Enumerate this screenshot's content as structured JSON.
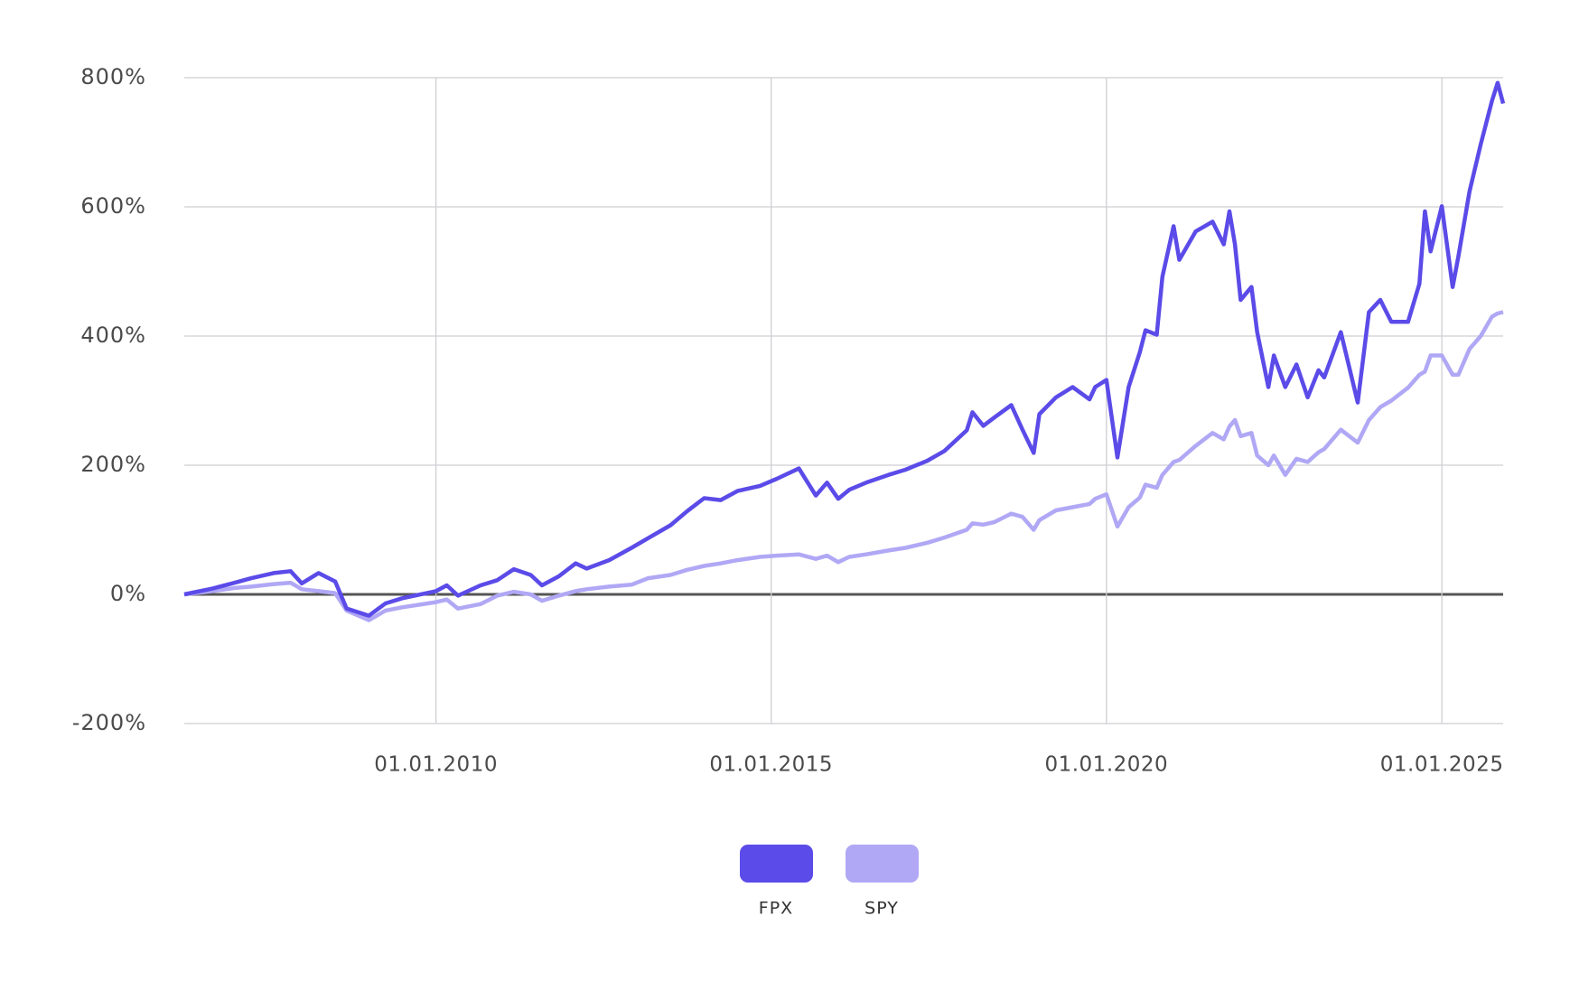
{
  "chart_data": {
    "type": "line",
    "x": [
      "01.04.2006",
      "01.09.2006",
      "01.01.2007",
      "01.04.2007",
      "01.08.2007",
      "01.11.2007",
      "01.01.2008",
      "01.04.2008",
      "01.07.2008",
      "01.09.2008",
      "01.01.2009",
      "01.04.2009",
      "01.07.2009",
      "01.01.2010",
      "01.03.2010",
      "01.05.2010",
      "01.09.2010",
      "01.12.2010",
      "01.03.2011",
      "01.06.2011",
      "01.08.2011",
      "01.11.2011",
      "01.02.2012",
      "01.04.2012",
      "01.08.2012",
      "01.12.2012",
      "01.03.2013",
      "01.07.2013",
      "01.10.2013",
      "01.01.2014",
      "01.04.2014",
      "01.07.2014",
      "01.11.2014",
      "01.02.2015",
      "01.06.2015",
      "01.09.2015",
      "01.11.2015",
      "01.01.2016",
      "01.03.2016",
      "01.06.2016",
      "01.10.2016",
      "01.01.2017",
      "01.05.2017",
      "01.08.2017",
      "01.12.2017",
      "01.01.2018",
      "01.03.2018",
      "01.05.2018",
      "01.08.2018",
      "01.10.2018",
      "01.12.2018",
      "01.01.2019",
      "01.04.2019",
      "01.07.2019",
      "01.10.2019",
      "01.11.2019",
      "01.01.2020",
      "01.03.2020",
      "01.05.2020",
      "01.07.2020",
      "01.08.2020",
      "01.10.2020",
      "01.11.2020",
      "01.01.2021",
      "01.02.2021",
      "01.05.2021",
      "01.08.2021",
      "01.10.2021",
      "01.11.2021",
      "01.12.2021",
      "01.01.2022",
      "01.03.2022",
      "01.04.2022",
      "01.06.2022",
      "01.07.2022",
      "01.09.2022",
      "01.11.2022",
      "01.01.2023",
      "01.03.2023",
      "01.04.2023",
      "01.07.2023",
      "01.10.2023",
      "01.12.2023",
      "01.02.2024",
      "01.04.2024",
      "01.07.2024",
      "01.09.2024",
      "01.10.2024",
      "01.11.2024",
      "01.01.2025",
      "01.03.2025",
      "01.04.2025",
      "01.06.2025",
      "01.08.2025",
      "01.10.2025",
      "01.11.2025",
      "01.12.2025"
    ],
    "series": [
      {
        "name": "FPX",
        "color": "#5b4be8",
        "values": [
          0,
          9,
          18,
          25,
          33,
          36,
          17,
          33,
          20,
          -22,
          -33,
          -14,
          -6,
          5,
          14,
          -2,
          14,
          22,
          39,
          30,
          14,
          28,
          48,
          40,
          53,
          72,
          87,
          107,
          129,
          149,
          146,
          160,
          168,
          179,
          195,
          153,
          173,
          148,
          162,
          173,
          185,
          193,
          207,
          222,
          254,
          282,
          261,
          274,
          293,
          255,
          219,
          279,
          305,
          321,
          302,
          321,
          332,
          212,
          321,
          375,
          409,
          402,
          492,
          570,
          518,
          562,
          577,
          542,
          593,
          542,
          456,
          476,
          406,
          321,
          370,
          321,
          356,
          305,
          347,
          336,
          406,
          297,
          437,
          456,
          422,
          422,
          481,
          593,
          531,
          601,
          476,
          523,
          624,
          697,
          764,
          792,
          760
        ]
      },
      {
        "name": "SPY",
        "color": "#b0a8f5",
        "values": [
          0,
          5,
          10,
          12,
          16,
          18,
          8,
          5,
          2,
          -25,
          -40,
          -25,
          -20,
          -12,
          -8,
          -22,
          -15,
          -2,
          4,
          0,
          -10,
          -2,
          5,
          8,
          12,
          15,
          25,
          30,
          38,
          44,
          48,
          53,
          58,
          60,
          62,
          55,
          60,
          50,
          58,
          62,
          68,
          72,
          80,
          88,
          100,
          110,
          108,
          112,
          125,
          120,
          100,
          115,
          130,
          135,
          140,
          148,
          155,
          105,
          135,
          150,
          170,
          165,
          185,
          205,
          208,
          230,
          250,
          240,
          260,
          270,
          245,
          250,
          215,
          200,
          215,
          185,
          210,
          205,
          220,
          225,
          255,
          235,
          270,
          290,
          300,
          320,
          340,
          345,
          370,
          370,
          340,
          340,
          380,
          400,
          430,
          435,
          437
        ]
      }
    ],
    "xlim": [
      "01.04.2006",
      "01.12.2025"
    ],
    "xticks": [
      "01.01.2010",
      "01.01.2015",
      "01.01.2020",
      "01.01.2025"
    ],
    "ylim": [
      -200,
      800
    ],
    "yticks": [
      {
        "value": -200,
        "label": "-200%"
      },
      {
        "value": 0,
        "label": "0%"
      },
      {
        "value": 200,
        "label": "200%"
      },
      {
        "value": 400,
        "label": "400%"
      },
      {
        "value": 600,
        "label": "600%"
      },
      {
        "value": 800,
        "label": "800%"
      }
    ],
    "grid": true
  }
}
